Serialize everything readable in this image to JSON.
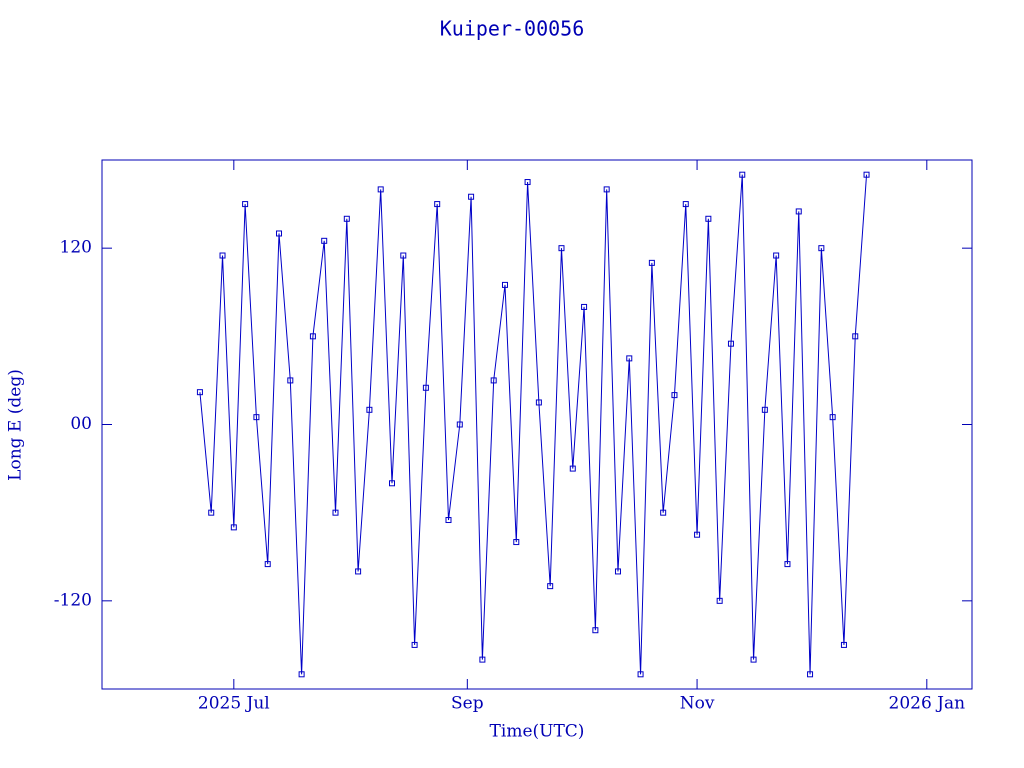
{
  "chart_data": {
    "type": "line",
    "title": "Kuiper-00056",
    "x_label": "Time(UTC)",
    "y_label": "Long E (deg)",
    "xlim": [
      "2025-05-27",
      "2026-01-13"
    ],
    "xticks": [
      {
        "value": "2025-07-01",
        "label": "2025 Jul"
      },
      {
        "value": "2025-09-01",
        "label": "Sep"
      },
      {
        "value": "2025-11-01",
        "label": "Nov"
      },
      {
        "value": "2026-01-01",
        "label": "2026 Jan"
      }
    ],
    "ylim": [
      -180,
      180
    ],
    "yticks": [
      -120,
      {
        "value": 0,
        "label": "00"
      },
      120
    ],
    "markers": true,
    "series": [
      {
        "color": "#0000c8",
        "x": [
          "2025-06-22",
          "2025-06-25",
          "2025-06-28",
          "2025-07-01",
          "2025-07-04",
          "2025-07-07",
          "2025-07-10",
          "2025-07-13",
          "2025-07-16",
          "2025-07-19",
          "2025-07-22",
          "2025-07-25",
          "2025-07-28",
          "2025-07-31",
          "2025-08-03",
          "2025-08-06",
          "2025-08-09",
          "2025-08-12",
          "2025-08-15",
          "2025-08-18",
          "2025-08-21",
          "2025-08-24",
          "2025-08-27",
          "2025-08-30",
          "2025-09-02",
          "2025-09-05",
          "2025-09-08",
          "2025-09-11",
          "2025-09-14",
          "2025-09-17",
          "2025-09-20",
          "2025-09-23",
          "2025-09-26",
          "2025-09-29",
          "2025-10-02",
          "2025-10-05",
          "2025-10-08",
          "2025-10-11",
          "2025-10-14",
          "2025-10-17",
          "2025-10-20",
          "2025-10-23",
          "2025-10-26",
          "2025-10-29",
          "2025-11-01",
          "2025-11-04",
          "2025-11-07",
          "2025-11-10",
          "2025-11-13",
          "2025-11-16",
          "2025-11-19",
          "2025-11-22",
          "2025-11-25",
          "2025-11-28",
          "2025-12-01",
          "2025-12-04",
          "2025-12-07",
          "2025-12-10",
          "2025-12-13",
          "2025-12-16"
        ],
        "values": [
          22,
          -60,
          115,
          -70,
          150,
          5,
          -95,
          130,
          30,
          -170,
          60,
          125,
          -60,
          140,
          -100,
          10,
          160,
          -40,
          115,
          -150,
          25,
          150,
          -65,
          0,
          155,
          -160,
          30,
          95,
          -80,
          165,
          15,
          -110,
          120,
          -30,
          80,
          -140,
          160,
          -100,
          45,
          -170,
          110,
          -60,
          20,
          150,
          -75,
          140,
          -120,
          55,
          170,
          -160,
          10,
          115,
          -95,
          145,
          -170,
          120,
          5,
          -150,
          60,
          170
        ]
      }
    ]
  }
}
